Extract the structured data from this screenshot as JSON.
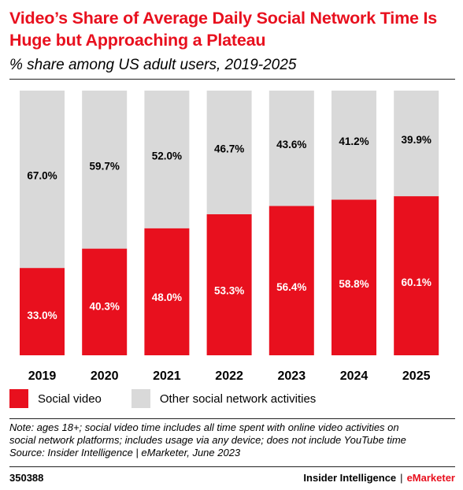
{
  "title": "Video’s Share of Average Daily Social Network Time Is Huge but Approaching a Plateau",
  "subtitle": "% share among US adult users, 2019-2025",
  "colors": {
    "accent": "#e8101e",
    "other": "#d9d9d9"
  },
  "chart_data": {
    "type": "bar",
    "stacked": true,
    "categories": [
      "2019",
      "2020",
      "2021",
      "2022",
      "2023",
      "2024",
      "2025"
    ],
    "series": [
      {
        "name": "Social video",
        "color": "#e8101e",
        "values": [
          33.0,
          40.3,
          48.0,
          53.3,
          56.4,
          58.8,
          60.1
        ],
        "labels": [
          "33.0%",
          "40.3%",
          "48.0%",
          "53.3%",
          "56.4%",
          "58.8%",
          "60.1%"
        ]
      },
      {
        "name": "Other social network activities",
        "color": "#d9d9d9",
        "values": [
          67.0,
          59.7,
          52.0,
          46.7,
          43.6,
          41.2,
          39.9
        ],
        "labels": [
          "67.0%",
          "59.7%",
          "52.0%",
          "46.7%",
          "43.6%",
          "41.2%",
          "39.9%"
        ]
      }
    ],
    "ylim": [
      0,
      100
    ],
    "legend_position": "bottom-left",
    "grid": false
  },
  "note_lines": [
    "Note: ages 18+; social video time includes all time spent with online video activities on",
    "social network platforms; includes usage via any device; does not include YouTube time",
    "Source: Insider Intelligence | eMarketer, June 2023"
  ],
  "footer": {
    "chart_id": "350388",
    "brand_left": "Insider Intelligence",
    "brand_sep": "|",
    "brand_right": "eMarketer"
  }
}
